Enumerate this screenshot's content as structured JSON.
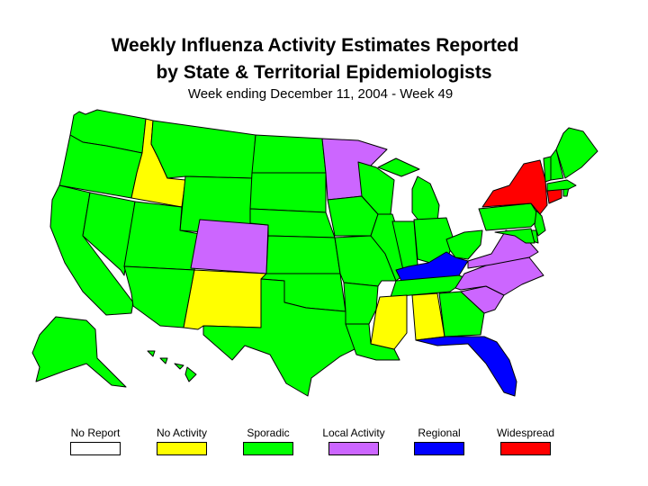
{
  "title_line1": "Weekly Influenza Activity Estimates Reported",
  "title_line2": "by State & Territorial Epidemiologists",
  "subtitle": "Week ending December 11, 2004 - Week 49",
  "legend": [
    {
      "label": "No Report",
      "color": "#ffffff",
      "icon": "no-report-swatch"
    },
    {
      "label": "No Activity",
      "color": "#ffff00",
      "icon": "no-activity-swatch"
    },
    {
      "label": "Sporadic",
      "color": "#00ff00",
      "icon": "sporadic-swatch"
    },
    {
      "label": "Local Activity",
      "color": "#cc66ff",
      "icon": "local-activity-swatch"
    },
    {
      "label": "Regional",
      "color": "#0000ff",
      "icon": "regional-swatch"
    },
    {
      "label": "Widespread",
      "color": "#ff0000",
      "icon": "widespread-swatch"
    }
  ],
  "activity_levels": {
    "Alaska": "Sporadic",
    "Hawaii": "Sporadic",
    "Washington": "Sporadic",
    "Oregon": "Sporadic",
    "California": "Sporadic",
    "Idaho": "No Activity",
    "Nevada": "Sporadic",
    "Montana": "Sporadic",
    "Wyoming": "Sporadic",
    "Utah": "Sporadic",
    "Arizona": "Sporadic",
    "Colorado": "Local Activity",
    "New Mexico": "No Activity",
    "North Dakota": "Sporadic",
    "South Dakota": "Sporadic",
    "Nebraska": "Sporadic",
    "Kansas": "Sporadic",
    "Oklahoma": "Sporadic",
    "Texas": "Sporadic",
    "Minnesota": "Local Activity",
    "Iowa": "Sporadic",
    "Missouri": "Sporadic",
    "Arkansas": "Sporadic",
    "Louisiana": "Sporadic",
    "Wisconsin": "Sporadic",
    "Illinois": "Sporadic",
    "Michigan": "Sporadic",
    "Indiana": "Sporadic",
    "Ohio": "Sporadic",
    "Kentucky": "Regional",
    "Tennessee": "Sporadic",
    "Mississippi": "No Activity",
    "Alabama": "No Activity",
    "Georgia": "Sporadic",
    "Florida": "Regional",
    "South Carolina": "Local Activity",
    "North Carolina": "Local Activity",
    "Virginia": "Local Activity",
    "West Virginia": "Sporadic",
    "Pennsylvania": "Sporadic",
    "New York": "Widespread",
    "New Jersey": "Sporadic",
    "Delaware": "Sporadic",
    "Maryland": "Sporadic",
    "Connecticut": "Widespread",
    "Rhode Island": "Sporadic",
    "Massachusetts": "Sporadic",
    "Vermont": "Sporadic",
    "New Hampshire": "Sporadic",
    "Maine": "Sporadic"
  }
}
